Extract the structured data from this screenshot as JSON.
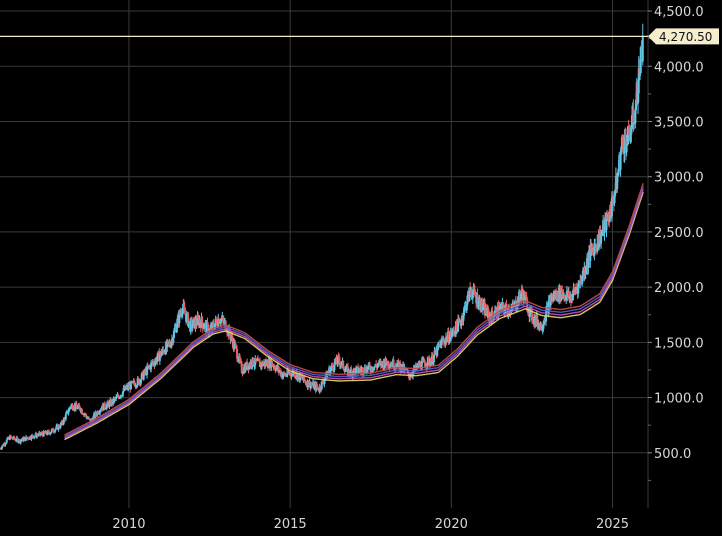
{
  "chart_data": {
    "type": "candlestick",
    "xlim": [
      2006.0,
      2026.1
    ],
    "ylim": [
      0,
      4600
    ],
    "grid": true,
    "x_ticks": [
      {
        "value": 2010,
        "label": "2010"
      },
      {
        "value": 2015,
        "label": "2015"
      },
      {
        "value": 2020,
        "label": "2020"
      },
      {
        "value": 2025,
        "label": "2025"
      }
    ],
    "y_ticks": [
      {
        "value": 500,
        "label": "500.0"
      },
      {
        "value": 1000,
        "label": "1,000.0"
      },
      {
        "value": 1500,
        "label": "1,500.0"
      },
      {
        "value": 2000,
        "label": "2,000.0"
      },
      {
        "value": 2500,
        "label": "2,500.0"
      },
      {
        "value": 3000,
        "label": "3,000.0"
      },
      {
        "value": 3500,
        "label": "3,500.0"
      },
      {
        "value": 4000,
        "label": "4,000.0"
      },
      {
        "value": 4500,
        "label": "4,500.0"
      }
    ],
    "last_price": {
      "value": 4270.5,
      "label": "4,270.50"
    },
    "colors": {
      "up": "#5ec8e8",
      "down": "#e86464",
      "grid": "#3a3a3a",
      "last_line": "#f2ebc4",
      "tag": "#f4eecc",
      "ma": [
        "#e0d060",
        "#c050c0",
        "#4a60d0",
        "#c84848"
      ]
    },
    "price_path": [
      [
        2006.0,
        540
      ],
      [
        2006.3,
        640
      ],
      [
        2006.6,
        610
      ],
      [
        2007.0,
        650
      ],
      [
        2007.5,
        680
      ],
      [
        2007.9,
        750
      ],
      [
        2008.2,
        930
      ],
      [
        2008.5,
        900
      ],
      [
        2008.8,
        780
      ],
      [
        2009.1,
        900
      ],
      [
        2009.5,
        960
      ],
      [
        2009.9,
        1080
      ],
      [
        2010.3,
        1150
      ],
      [
        2010.7,
        1300
      ],
      [
        2011.0,
        1400
      ],
      [
        2011.3,
        1500
      ],
      [
        2011.65,
        1820
      ],
      [
        2011.9,
        1650
      ],
      [
        2012.2,
        1700
      ],
      [
        2012.5,
        1600
      ],
      [
        2012.8,
        1720
      ],
      [
        2013.0,
        1660
      ],
      [
        2013.3,
        1450
      ],
      [
        2013.5,
        1250
      ],
      [
        2013.8,
        1320
      ],
      [
        2014.1,
        1300
      ],
      [
        2014.4,
        1320
      ],
      [
        2014.8,
        1200
      ],
      [
        2015.1,
        1230
      ],
      [
        2015.5,
        1140
      ],
      [
        2015.9,
        1080
      ],
      [
        2016.2,
        1240
      ],
      [
        2016.5,
        1340
      ],
      [
        2016.8,
        1230
      ],
      [
        2017.2,
        1250
      ],
      [
        2017.6,
        1280
      ],
      [
        2018.0,
        1320
      ],
      [
        2018.4,
        1290
      ],
      [
        2018.7,
        1200
      ],
      [
        2019.0,
        1290
      ],
      [
        2019.4,
        1340
      ],
      [
        2019.7,
        1500
      ],
      [
        2020.0,
        1570
      ],
      [
        2020.3,
        1700
      ],
      [
        2020.6,
        1980
      ],
      [
        2020.9,
        1850
      ],
      [
        2021.2,
        1720
      ],
      [
        2021.5,
        1800
      ],
      [
        2021.9,
        1800
      ],
      [
        2022.2,
        1950
      ],
      [
        2022.5,
        1730
      ],
      [
        2022.8,
        1650
      ],
      [
        2023.1,
        1900
      ],
      [
        2023.4,
        1950
      ],
      [
        2023.7,
        1900
      ],
      [
        2024.0,
        2050
      ],
      [
        2024.3,
        2300
      ],
      [
        2024.6,
        2450
      ],
      [
        2024.9,
        2650
      ],
      [
        2025.1,
        2900
      ],
      [
        2025.3,
        3300
      ],
      [
        2025.5,
        3350
      ],
      [
        2025.7,
        3600
      ],
      [
        2025.85,
        4000
      ],
      [
        2025.95,
        4270.5
      ]
    ],
    "ma_path": [
      [
        2008.0,
        640
      ],
      [
        2009.0,
        790
      ],
      [
        2010.0,
        960
      ],
      [
        2011.0,
        1200
      ],
      [
        2012.0,
        1480
      ],
      [
        2012.6,
        1600
      ],
      [
        2013.0,
        1630
      ],
      [
        2013.6,
        1560
      ],
      [
        2014.3,
        1400
      ],
      [
        2015.0,
        1270
      ],
      [
        2015.7,
        1200
      ],
      [
        2016.5,
        1180
      ],
      [
        2017.5,
        1190
      ],
      [
        2018.3,
        1240
      ],
      [
        2018.9,
        1230
      ],
      [
        2019.6,
        1260
      ],
      [
        2020.2,
        1410
      ],
      [
        2020.8,
        1600
      ],
      [
        2021.5,
        1750
      ],
      [
        2022.3,
        1840
      ],
      [
        2022.8,
        1780
      ],
      [
        2023.4,
        1760
      ],
      [
        2024.0,
        1790
      ],
      [
        2024.6,
        1900
      ],
      [
        2025.0,
        2100
      ],
      [
        2025.5,
        2500
      ],
      [
        2025.95,
        2900
      ]
    ]
  }
}
